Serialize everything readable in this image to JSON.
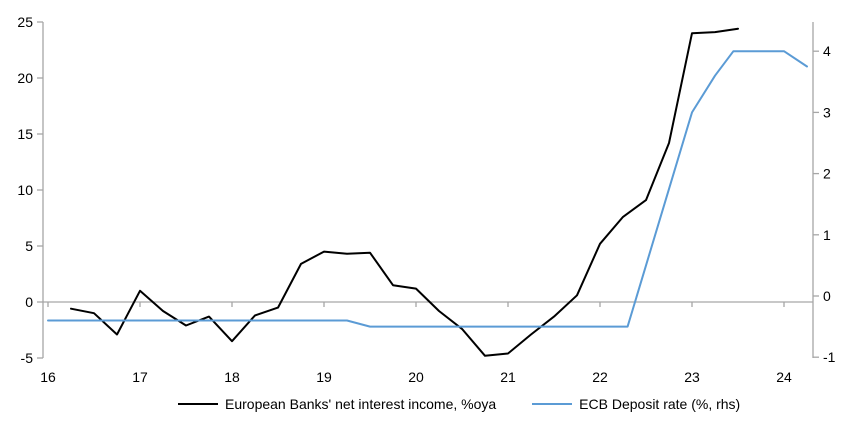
{
  "chart_data": {
    "type": "line",
    "title": "",
    "xlabel": "",
    "ylabel_left": "",
    "ylabel_right": "",
    "x_axis": {
      "ticks": [
        16,
        17,
        18,
        19,
        20,
        21,
        22,
        23,
        24
      ],
      "labels": [
        "16",
        "17",
        "18",
        "19",
        "20",
        "21",
        "22",
        "23",
        "24"
      ],
      "range": [
        15.95,
        24.3
      ]
    },
    "left_axis": {
      "ticks": [
        -5,
        0,
        5,
        10,
        15,
        20,
        25
      ],
      "labels": [
        "-5",
        "0",
        "5",
        "10",
        "15",
        "20",
        "25"
      ],
      "range": [
        -5,
        25
      ]
    },
    "right_axis": {
      "ticks": [
        -1,
        0,
        1,
        2,
        3,
        4
      ],
      "labels": [
        "-1",
        "0",
        "1",
        "2",
        "3",
        "4"
      ],
      "range": [
        -1.07,
        4.48
      ]
    },
    "grid": "zero-line-only",
    "legend_position": "bottom",
    "axis_color": "#A6A6A6",
    "background": "#ffffff",
    "series": [
      {
        "name": "European Banks' net interest income, %oya",
        "axis": "left",
        "color": "#000000",
        "width": 2,
        "points": [
          [
            16.25,
            -0.6
          ],
          [
            16.5,
            -1.0
          ],
          [
            16.75,
            -2.9
          ],
          [
            17.0,
            1.0
          ],
          [
            17.25,
            -0.8
          ],
          [
            17.5,
            -2.1
          ],
          [
            17.75,
            -1.3
          ],
          [
            18.0,
            -3.5
          ],
          [
            18.25,
            -1.2
          ],
          [
            18.5,
            -0.5
          ],
          [
            18.75,
            3.4
          ],
          [
            19.0,
            4.5
          ],
          [
            19.25,
            4.3
          ],
          [
            19.5,
            4.4
          ],
          [
            19.75,
            1.5
          ],
          [
            20.0,
            1.2
          ],
          [
            20.25,
            -0.8
          ],
          [
            20.5,
            -2.4
          ],
          [
            20.75,
            -4.8
          ],
          [
            21.0,
            -4.6
          ],
          [
            21.25,
            -2.9
          ],
          [
            21.5,
            -1.3
          ],
          [
            21.75,
            0.6
          ],
          [
            22.0,
            5.2
          ],
          [
            22.25,
            7.6
          ],
          [
            22.5,
            9.1
          ],
          [
            22.75,
            14.2
          ],
          [
            23.0,
            24.0
          ],
          [
            23.25,
            24.1
          ],
          [
            23.5,
            24.4
          ]
        ]
      },
      {
        "name": "ECB Deposit rate (%, rhs)",
        "axis": "right",
        "color": "#5B9BD5",
        "width": 2,
        "points": [
          [
            16.0,
            -0.4
          ],
          [
            19.25,
            -0.4
          ],
          [
            19.5,
            -0.5
          ],
          [
            22.3,
            -0.5
          ],
          [
            22.5,
            0.5
          ],
          [
            22.75,
            1.75
          ],
          [
            23.0,
            3.0
          ],
          [
            23.25,
            3.6
          ],
          [
            23.45,
            4.0
          ],
          [
            23.75,
            4.0
          ],
          [
            24.0,
            4.0
          ],
          [
            24.25,
            3.75
          ]
        ]
      }
    ]
  }
}
